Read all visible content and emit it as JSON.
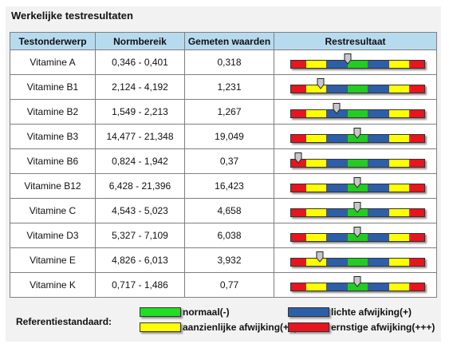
{
  "title": "Werkelijke testresultaten",
  "columns": [
    "Testonderwerp",
    "Normbereik",
    "Gemeten waarden",
    "Restresultaat"
  ],
  "scale_colors": [
    "#e8141e",
    "#ffff00",
    "#2d5fa8",
    "#22cc22",
    "#2d5fa8",
    "#ffff00",
    "#e8141e"
  ],
  "rows": [
    {
      "subject": "Vitamine A",
      "range": "0,346 - 0,401",
      "measured": "0,318",
      "indicator": 0.43
    },
    {
      "subject": "Vitamine B1",
      "range": "2,124 - 4,192",
      "measured": "1,231",
      "indicator": 0.23
    },
    {
      "subject": "Vitamine B2",
      "range": "1,549 - 2,213",
      "measured": "1,267",
      "indicator": 0.35
    },
    {
      "subject": "Vitamine B3",
      "range": "14,477 - 21,348",
      "measured": "19,049",
      "indicator": 0.5
    },
    {
      "subject": "Vitamine B6",
      "range": "0,824 - 1,942",
      "measured": "0,37",
      "indicator": 0.06
    },
    {
      "subject": "Vitamine B12",
      "range": "6,428 - 21,396",
      "measured": "16,423",
      "indicator": 0.5
    },
    {
      "subject": "Vitamine C",
      "range": "4,543 - 5,023",
      "measured": "4,658",
      "indicator": 0.5
    },
    {
      "subject": "Vitamine D3",
      "range": "5,327 - 7,109",
      "measured": "6,038",
      "indicator": 0.5
    },
    {
      "subject": "Vitamine E",
      "range": "4,826 - 6,013",
      "measured": "3,932",
      "indicator": 0.22
    },
    {
      "subject": "Vitamine K",
      "range": "0,717 - 1,486",
      "measured": "0,77",
      "indicator": 0.5
    }
  ],
  "legend": {
    "title": "Referentiestandaard:",
    "items": [
      {
        "label": "normaal(-)",
        "color": "#22dd22"
      },
      {
        "label": "lichte afwijking(+)",
        "color": "#2d5fa8"
      },
      {
        "label": "aanzienlijke afwijking(++)",
        "color": "#ffff00"
      },
      {
        "label": "ernstige afwijking(+++)",
        "color": "#e8141e"
      }
    ]
  }
}
